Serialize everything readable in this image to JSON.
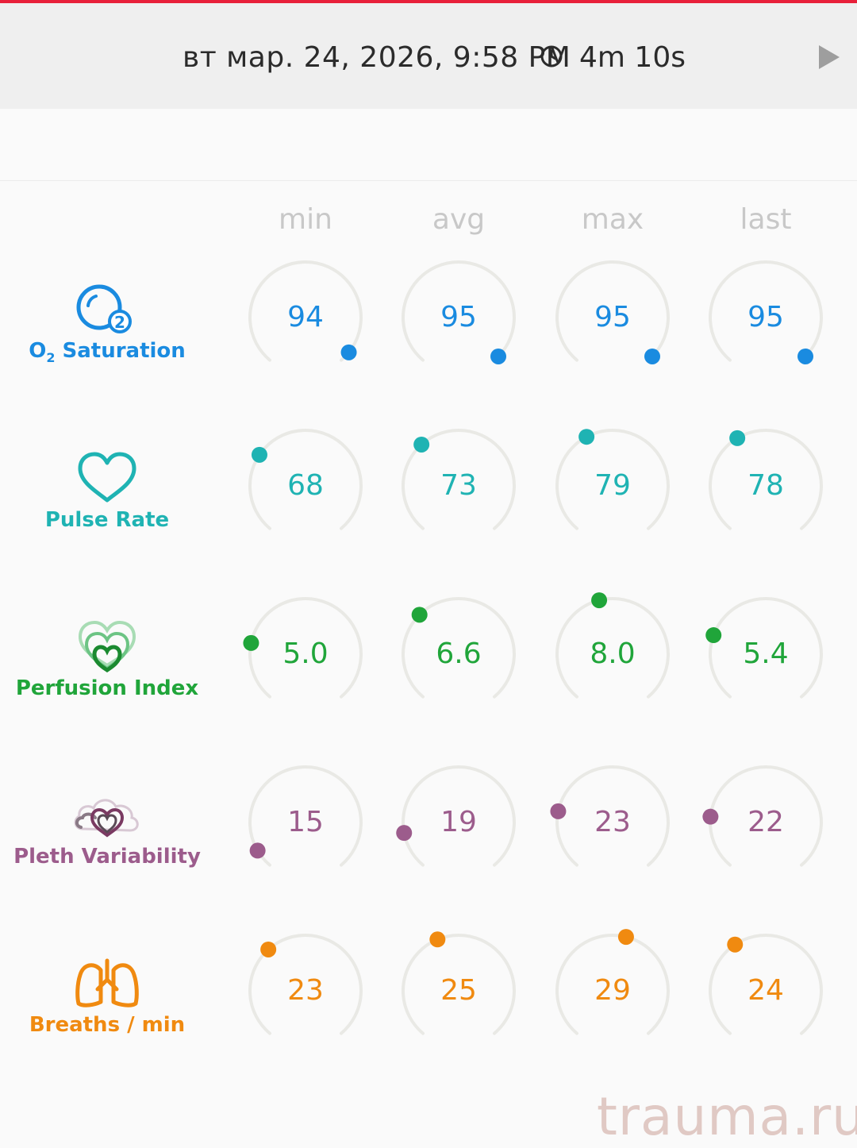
{
  "header": {
    "date_time": "вт мар. 24, 2026, 9:58 PM",
    "duration": "4m 10s",
    "clock_icon": "clock-icon",
    "play_icon": "play-icon"
  },
  "columns": [
    "min",
    "avg",
    "max",
    "last"
  ],
  "colors": {
    "o2": "#1a8be0",
    "pulse": "#1fb3b3",
    "perfusion": "#20a53a",
    "pleth": "#9c5c8c",
    "breaths": "#f08a10",
    "track": "#e9e9e5"
  },
  "metrics": [
    {
      "id": "o2",
      "label_main": "O",
      "label_sub": "2",
      "label_rest": " Saturation",
      "icon": "o2-bubble-icon",
      "values": [
        "94",
        "95",
        "95",
        "95"
      ],
      "levels": [
        0.96,
        0.98,
        0.98,
        0.98
      ]
    },
    {
      "id": "pulse",
      "label": "Pulse Rate",
      "icon": "heart-icon",
      "values": [
        "68",
        "73",
        "79",
        "78"
      ],
      "levels": [
        0.3,
        0.35,
        0.4,
        0.39
      ]
    },
    {
      "id": "perfusion",
      "label": "Perfusion Index",
      "icon": "perfusion-hearts-icon",
      "values": [
        "5.0",
        "6.6",
        "8.0",
        "5.4"
      ],
      "levels": [
        0.22,
        0.34,
        0.45,
        0.25
      ]
    },
    {
      "id": "pleth",
      "label": "Pleth Variability",
      "icon": "pleth-cloud-heart-icon",
      "values": [
        "15",
        "19",
        "23",
        "22"
      ],
      "levels": [
        0.07,
        0.14,
        0.22,
        0.2
      ]
    },
    {
      "id": "breaths",
      "label": "Breaths / min",
      "icon": "lungs-icon",
      "values": [
        "23",
        "25",
        "29",
        "24"
      ],
      "levels": [
        0.35,
        0.42,
        0.55,
        0.38
      ]
    }
  ],
  "watermark": "trauma.ru"
}
